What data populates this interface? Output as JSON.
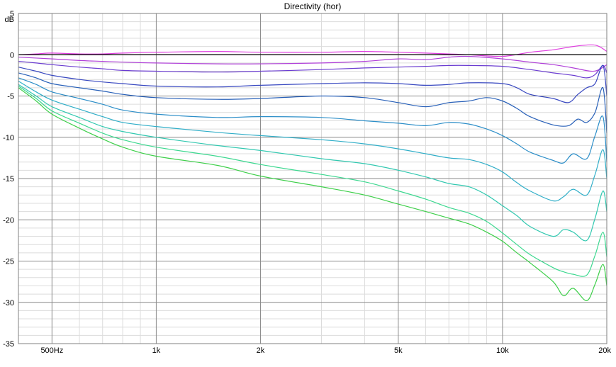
{
  "chart_data": {
    "type": "line",
    "title": "Directivity (hor)",
    "ylabel": "dB",
    "xlabel": "",
    "x_scale": "log",
    "xlim": [
      400,
      20000
    ],
    "ylim": [
      -35,
      5
    ],
    "grid": true,
    "legend": "none",
    "x_ticks": [
      {
        "value": 500,
        "label": "500Hz"
      },
      {
        "value": 1000,
        "label": "1k"
      },
      {
        "value": 2000,
        "label": "2k"
      },
      {
        "value": 5000,
        "label": "5k"
      },
      {
        "value": 10000,
        "label": "10k"
      },
      {
        "value": 20000,
        "label": "20k"
      }
    ],
    "y_ticks": [
      5,
      0,
      -5,
      -10,
      -15,
      -20,
      -25,
      -30,
      -35
    ],
    "reference_line": 0,
    "series": [
      {
        "color": "#e040e0",
        "points": [
          [
            400,
            0
          ],
          [
            450,
            0.1
          ],
          [
            500,
            0.2
          ],
          [
            600,
            0.1
          ],
          [
            700,
            0.1
          ],
          [
            800,
            0.2
          ],
          [
            1000,
            0.3
          ],
          [
            1500,
            0.4
          ],
          [
            2000,
            0.3
          ],
          [
            3000,
            0.3
          ],
          [
            4000,
            0.4
          ],
          [
            5000,
            0.3
          ],
          [
            6000,
            0.2
          ],
          [
            7000,
            0.1
          ],
          [
            8000,
            0.0
          ],
          [
            10000,
            -0.2
          ],
          [
            12000,
            0.3
          ],
          [
            14000,
            0.6
          ],
          [
            16000,
            1.0
          ],
          [
            18000,
            1.2
          ],
          [
            19000,
            1.0
          ],
          [
            20000,
            0.4
          ]
        ]
      },
      {
        "color": "#b040d8",
        "points": [
          [
            400,
            -0.3
          ],
          [
            500,
            -0.5
          ],
          [
            600,
            -0.7
          ],
          [
            700,
            -0.8
          ],
          [
            800,
            -0.9
          ],
          [
            1000,
            -1.0
          ],
          [
            1500,
            -1.1
          ],
          [
            2000,
            -1.1
          ],
          [
            3000,
            -1.0
          ],
          [
            4000,
            -0.8
          ],
          [
            5000,
            -0.5
          ],
          [
            6000,
            -0.6
          ],
          [
            7000,
            -0.3
          ],
          [
            8000,
            -0.2
          ],
          [
            10000,
            -0.5
          ],
          [
            12000,
            -0.9
          ],
          [
            14000,
            -1.2
          ],
          [
            16000,
            -1.6
          ],
          [
            18000,
            -2.0
          ],
          [
            19000,
            -1.8
          ],
          [
            20000,
            -1.2
          ]
        ]
      },
      {
        "color": "#6a3cd0",
        "points": [
          [
            400,
            -0.8
          ],
          [
            450,
            -1.0
          ],
          [
            500,
            -1.2
          ],
          [
            600,
            -1.5
          ],
          [
            700,
            -1.7
          ],
          [
            800,
            -1.9
          ],
          [
            1000,
            -2.0
          ],
          [
            1500,
            -2.1
          ],
          [
            2000,
            -2.0
          ],
          [
            3000,
            -1.8
          ],
          [
            4000,
            -1.6
          ],
          [
            5000,
            -1.5
          ],
          [
            6000,
            -1.4
          ],
          [
            7000,
            -1.3
          ],
          [
            8000,
            -1.3
          ],
          [
            10000,
            -1.4
          ],
          [
            12000,
            -1.8
          ],
          [
            14000,
            -2.2
          ],
          [
            16000,
            -2.5
          ],
          [
            17500,
            -2.8
          ],
          [
            18500,
            -2.4
          ],
          [
            19500,
            -1.3
          ],
          [
            20000,
            -2.2
          ]
        ]
      },
      {
        "color": "#3848c0",
        "points": [
          [
            400,
            -1.5
          ],
          [
            450,
            -2.0
          ],
          [
            500,
            -2.5
          ],
          [
            600,
            -3.0
          ],
          [
            700,
            -3.3
          ],
          [
            800,
            -3.5
          ],
          [
            1000,
            -3.8
          ],
          [
            1500,
            -3.9
          ],
          [
            2000,
            -3.7
          ],
          [
            3000,
            -3.5
          ],
          [
            4000,
            -3.4
          ],
          [
            5000,
            -3.5
          ],
          [
            6000,
            -3.7
          ],
          [
            7000,
            -3.6
          ],
          [
            8000,
            -3.4
          ],
          [
            10000,
            -3.5
          ],
          [
            11000,
            -4.0
          ],
          [
            12000,
            -4.8
          ],
          [
            14000,
            -5.3
          ],
          [
            15500,
            -5.8
          ],
          [
            16500,
            -4.8
          ],
          [
            17500,
            -4.0
          ],
          [
            18500,
            -3.5
          ],
          [
            19500,
            -1.3
          ],
          [
            20000,
            -5.0
          ]
        ]
      },
      {
        "color": "#2860b8",
        "points": [
          [
            400,
            -2.2
          ],
          [
            450,
            -2.8
          ],
          [
            500,
            -3.5
          ],
          [
            600,
            -4.0
          ],
          [
            700,
            -4.4
          ],
          [
            800,
            -4.8
          ],
          [
            1000,
            -5.2
          ],
          [
            1500,
            -5.4
          ],
          [
            2000,
            -5.3
          ],
          [
            3000,
            -5.0
          ],
          [
            4000,
            -5.2
          ],
          [
            5000,
            -5.8
          ],
          [
            6000,
            -6.3
          ],
          [
            7000,
            -5.8
          ],
          [
            8000,
            -5.6
          ],
          [
            9000,
            -5.2
          ],
          [
            10000,
            -5.6
          ],
          [
            11000,
            -6.5
          ],
          [
            12000,
            -7.5
          ],
          [
            14000,
            -8.5
          ],
          [
            15500,
            -8.6
          ],
          [
            16500,
            -7.8
          ],
          [
            17500,
            -8.2
          ],
          [
            18500,
            -7.0
          ],
          [
            19500,
            -4.0
          ],
          [
            20000,
            -9.5
          ]
        ]
      },
      {
        "color": "#2c8ec8",
        "points": [
          [
            400,
            -2.8
          ],
          [
            450,
            -3.6
          ],
          [
            500,
            -4.5
          ],
          [
            600,
            -5.3
          ],
          [
            700,
            -6.0
          ],
          [
            800,
            -6.7
          ],
          [
            1000,
            -7.2
          ],
          [
            1500,
            -7.6
          ],
          [
            2000,
            -7.5
          ],
          [
            3000,
            -7.6
          ],
          [
            4000,
            -8.0
          ],
          [
            5000,
            -8.3
          ],
          [
            6000,
            -8.6
          ],
          [
            7000,
            -8.2
          ],
          [
            8000,
            -8.4
          ],
          [
            9000,
            -9.0
          ],
          [
            10000,
            -9.8
          ],
          [
            11000,
            -10.8
          ],
          [
            12000,
            -11.8
          ],
          [
            14000,
            -12.8
          ],
          [
            15000,
            -13.1
          ],
          [
            16000,
            -12.0
          ],
          [
            17500,
            -12.6
          ],
          [
            18500,
            -9.8
          ],
          [
            19500,
            -7.5
          ],
          [
            20000,
            -13.0
          ]
        ]
      },
      {
        "color": "#30aec8",
        "points": [
          [
            400,
            -3.2
          ],
          [
            450,
            -4.5
          ],
          [
            500,
            -5.5
          ],
          [
            600,
            -6.6
          ],
          [
            700,
            -7.5
          ],
          [
            800,
            -8.2
          ],
          [
            1000,
            -8.7
          ],
          [
            1500,
            -9.4
          ],
          [
            2000,
            -9.8
          ],
          [
            3000,
            -10.3
          ],
          [
            4000,
            -10.8
          ],
          [
            5000,
            -11.4
          ],
          [
            6000,
            -12.0
          ],
          [
            7000,
            -12.5
          ],
          [
            8000,
            -12.7
          ],
          [
            9000,
            -13.3
          ],
          [
            10000,
            -14.2
          ],
          [
            11000,
            -15.5
          ],
          [
            12000,
            -16.5
          ],
          [
            14000,
            -17.7
          ],
          [
            15000,
            -17.2
          ],
          [
            16000,
            -16.3
          ],
          [
            17500,
            -17.0
          ],
          [
            18500,
            -14.5
          ],
          [
            19500,
            -11.5
          ],
          [
            20000,
            -15.0
          ]
        ]
      },
      {
        "color": "#32c8b0",
        "points": [
          [
            400,
            -3.6
          ],
          [
            450,
            -5.0
          ],
          [
            500,
            -6.3
          ],
          [
            600,
            -7.6
          ],
          [
            700,
            -8.7
          ],
          [
            800,
            -9.3
          ],
          [
            1000,
            -10.0
          ],
          [
            1500,
            -11.0
          ],
          [
            2000,
            -11.6
          ],
          [
            3000,
            -12.6
          ],
          [
            4000,
            -13.2
          ],
          [
            5000,
            -14.0
          ],
          [
            6000,
            -14.8
          ],
          [
            7000,
            -15.6
          ],
          [
            8000,
            -16.0
          ],
          [
            9000,
            -17.0
          ],
          [
            10000,
            -18.3
          ],
          [
            11000,
            -19.5
          ],
          [
            12000,
            -20.8
          ],
          [
            14000,
            -22.0
          ],
          [
            15000,
            -21.2
          ],
          [
            16000,
            -21.5
          ],
          [
            17500,
            -22.5
          ],
          [
            18500,
            -19.8
          ],
          [
            19500,
            -16.5
          ],
          [
            20000,
            -19.0
          ]
        ]
      },
      {
        "color": "#3dd890",
        "points": [
          [
            400,
            -3.8
          ],
          [
            450,
            -5.3
          ],
          [
            500,
            -6.8
          ],
          [
            600,
            -8.3
          ],
          [
            700,
            -9.5
          ],
          [
            800,
            -10.3
          ],
          [
            1000,
            -11.2
          ],
          [
            1500,
            -12.3
          ],
          [
            2000,
            -13.3
          ],
          [
            3000,
            -14.5
          ],
          [
            4000,
            -15.4
          ],
          [
            5000,
            -16.5
          ],
          [
            6000,
            -17.5
          ],
          [
            7000,
            -18.5
          ],
          [
            8000,
            -19.2
          ],
          [
            9000,
            -20.2
          ],
          [
            10000,
            -21.6
          ],
          [
            11000,
            -23.0
          ],
          [
            12000,
            -24.2
          ],
          [
            14000,
            -25.8
          ],
          [
            15000,
            -26.3
          ],
          [
            16000,
            -26.6
          ],
          [
            17500,
            -26.7
          ],
          [
            18500,
            -24.3
          ],
          [
            19500,
            -21.5
          ],
          [
            20000,
            -24.5
          ]
        ]
      },
      {
        "color": "#3ecf4a",
        "points": [
          [
            400,
            -4.0
          ],
          [
            450,
            -5.6
          ],
          [
            500,
            -7.2
          ],
          [
            600,
            -8.9
          ],
          [
            700,
            -10.2
          ],
          [
            800,
            -11.2
          ],
          [
            1000,
            -12.3
          ],
          [
            1500,
            -13.4
          ],
          [
            2000,
            -14.7
          ],
          [
            3000,
            -16.0
          ],
          [
            4000,
            -17.0
          ],
          [
            5000,
            -18.1
          ],
          [
            6000,
            -19.0
          ],
          [
            7000,
            -19.8
          ],
          [
            8000,
            -20.5
          ],
          [
            9000,
            -21.5
          ],
          [
            10000,
            -22.6
          ],
          [
            11000,
            -24.0
          ],
          [
            12000,
            -25.2
          ],
          [
            14000,
            -27.5
          ],
          [
            15000,
            -29.2
          ],
          [
            16000,
            -28.3
          ],
          [
            17500,
            -29.8
          ],
          [
            18500,
            -27.8
          ],
          [
            19500,
            -25.4
          ],
          [
            20000,
            -28.0
          ]
        ]
      }
    ]
  }
}
